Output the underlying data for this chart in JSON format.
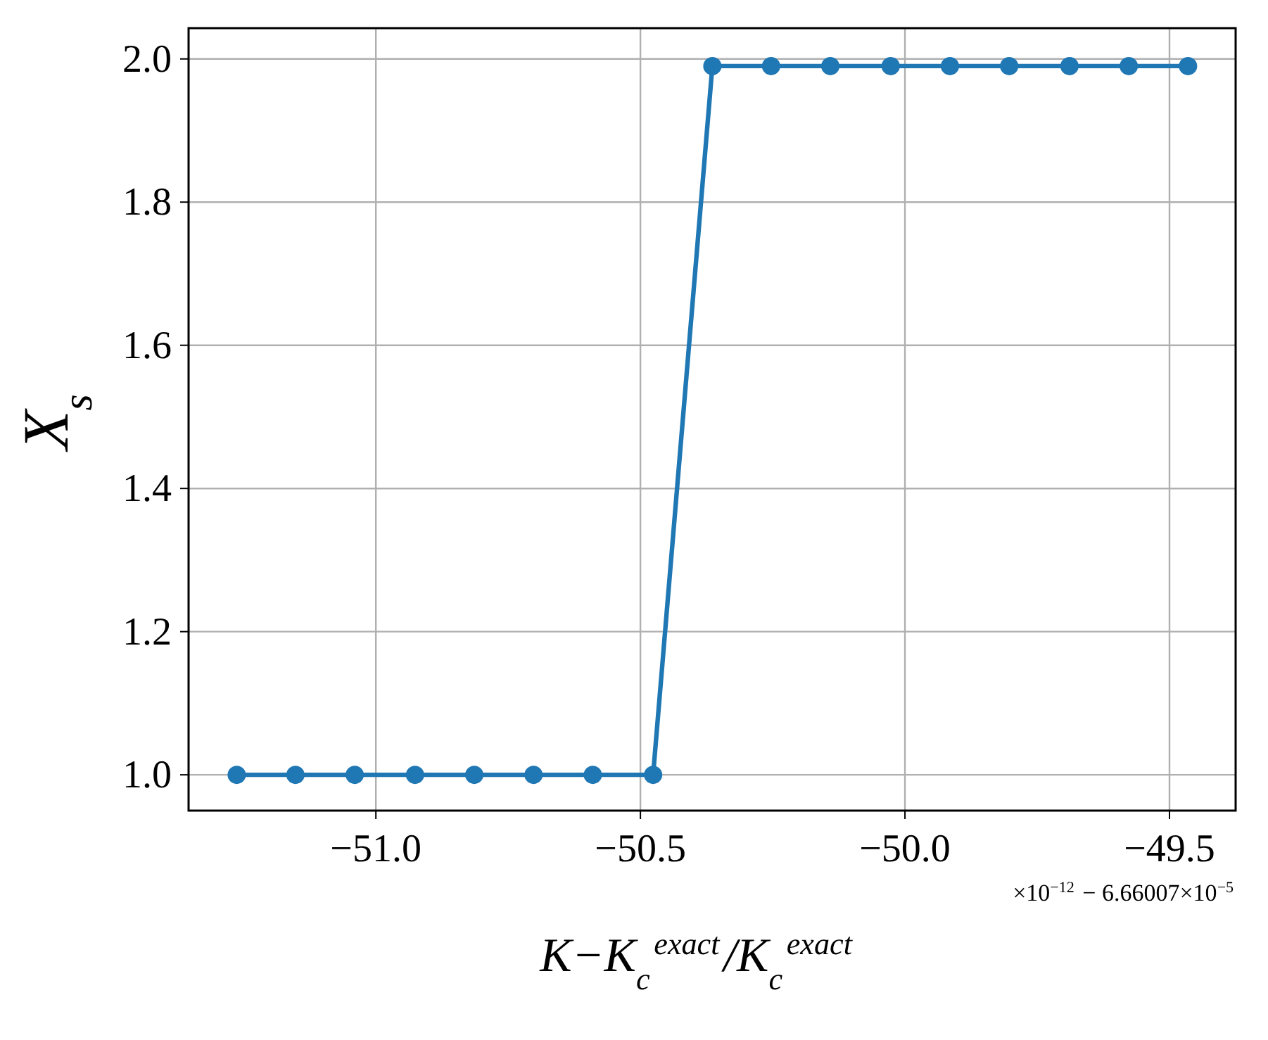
{
  "chart_data": {
    "type": "line",
    "xlabel": "K−K$_{c}$$^{exact}$/K$_{c}$$^{exact}$",
    "ylabel": "X$_{s}$",
    "annotations": [
      "×10$^{−12}$ − 6.66007×10$^{−5}$"
    ],
    "x": [
      -51.263,
      -51.152,
      -51.04,
      -50.926,
      -50.814,
      -50.702,
      -50.59,
      -50.476,
      -50.364,
      -50.253,
      -50.141,
      -50.027,
      -49.915,
      -49.803,
      -49.689,
      -49.577,
      -49.465
    ],
    "series": [
      {
        "color": "#1f77b4",
        "values": [
          1.0,
          1.0,
          1.0,
          1.0,
          1.0,
          1.0,
          1.0,
          1.0,
          1.99,
          1.99,
          1.99,
          1.99,
          1.99,
          1.99,
          1.99,
          1.99,
          1.99
        ]
      }
    ],
    "xlim": [
      -51.354,
      -49.375
    ],
    "ylim": [
      0.95,
      2.043
    ],
    "xticks": [
      {
        "value": -51.0,
        "label": "−51.0"
      },
      {
        "value": -50.5,
        "label": "−50.5"
      },
      {
        "value": -50.0,
        "label": "−50.0"
      },
      {
        "value": -49.5,
        "label": "−49.5"
      }
    ],
    "yticks": [
      {
        "value": 1.0,
        "label": "1.0"
      },
      {
        "value": 1.2,
        "label": "1.2"
      },
      {
        "value": 1.4,
        "label": "1.4"
      },
      {
        "value": 1.6,
        "label": "1.6"
      },
      {
        "value": 1.8,
        "label": "1.8"
      },
      {
        "value": 2.0,
        "label": "2.0"
      }
    ],
    "grid": true,
    "marker": "circle",
    "line_style": "solid"
  }
}
